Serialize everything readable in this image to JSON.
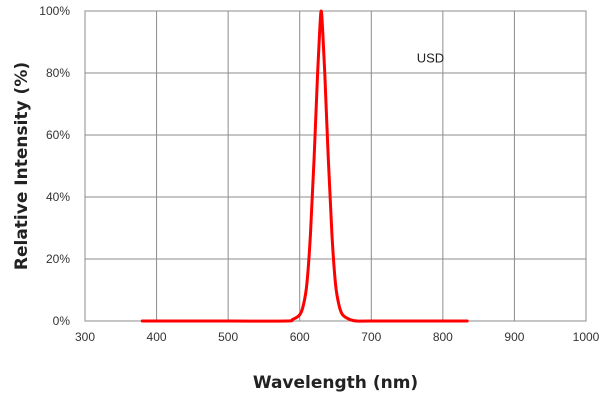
{
  "chart_data": {
    "type": "line",
    "title": "",
    "xlabel": "Wavelength (nm)",
    "ylabel": "Relative Intensity (%)",
    "xlim": [
      300,
      1000
    ],
    "ylim": [
      0,
      100
    ],
    "x_ticks": [
      "300",
      "400",
      "500",
      "600",
      "700",
      "800",
      "900",
      "1000"
    ],
    "y_ticks": [
      "0%",
      "20%",
      "40%",
      "60%",
      "80%",
      "100%"
    ],
    "grid": true,
    "legend": "none",
    "annotations": [
      {
        "text": "USD",
        "x": 790,
        "y": 85
      }
    ],
    "series": [
      {
        "color": "#ff0000",
        "x": [
          380,
          500,
          580,
          590,
          600,
          605,
          610,
          615,
          620,
          625,
          628,
          630,
          632,
          635,
          640,
          645,
          650,
          655,
          660,
          670,
          680,
          700,
          834
        ],
        "y": [
          0,
          0,
          0,
          0.5,
          2,
          5,
          12,
          28,
          52,
          80,
          94,
          100,
          94,
          80,
          52,
          28,
          12,
          5,
          2,
          0.5,
          0,
          0,
          0
        ]
      }
    ]
  }
}
